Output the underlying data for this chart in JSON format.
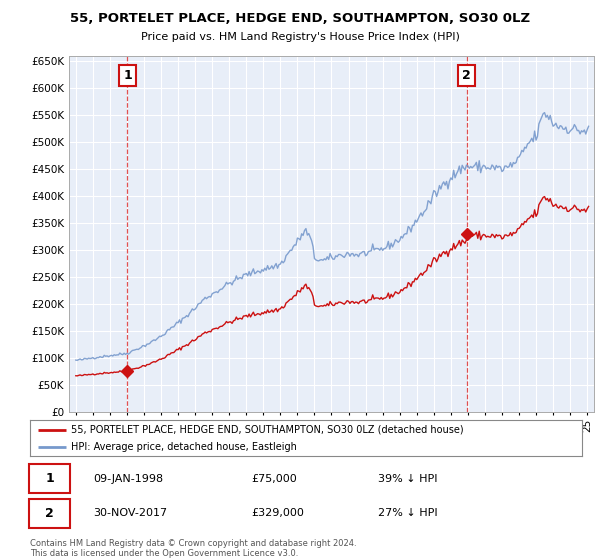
{
  "title": "55, PORTELET PLACE, HEDGE END, SOUTHAMPTON, SO30 0LZ",
  "subtitle": "Price paid vs. HM Land Registry's House Price Index (HPI)",
  "sale1_date": "09-JAN-1998",
  "sale1_price": 75000,
  "sale1_pct": "39% ↓ HPI",
  "sale2_date": "30-NOV-2017",
  "sale2_price": 329000,
  "sale2_pct": "27% ↓ HPI",
  "legend_label_red": "55, PORTELET PLACE, HEDGE END, SOUTHAMPTON, SO30 0LZ (detached house)",
  "legend_label_blue": "HPI: Average price, detached house, Eastleigh",
  "footnote": "Contains HM Land Registry data © Crown copyright and database right 2024.\nThis data is licensed under the Open Government Licence v3.0.",
  "ylim": [
    0,
    660000
  ],
  "yticks": [
    0,
    50000,
    100000,
    150000,
    200000,
    250000,
    300000,
    350000,
    400000,
    450000,
    500000,
    550000,
    600000,
    650000
  ],
  "red_color": "#cc1111",
  "blue_color": "#7799cc",
  "vline_color": "#dd3333",
  "marker_color": "#cc1111",
  "background_color": "#ffffff",
  "chart_bg_color": "#e8eef8",
  "grid_color": "#ffffff",
  "sale1_year_float": 1998.03,
  "sale2_year_float": 2017.92
}
